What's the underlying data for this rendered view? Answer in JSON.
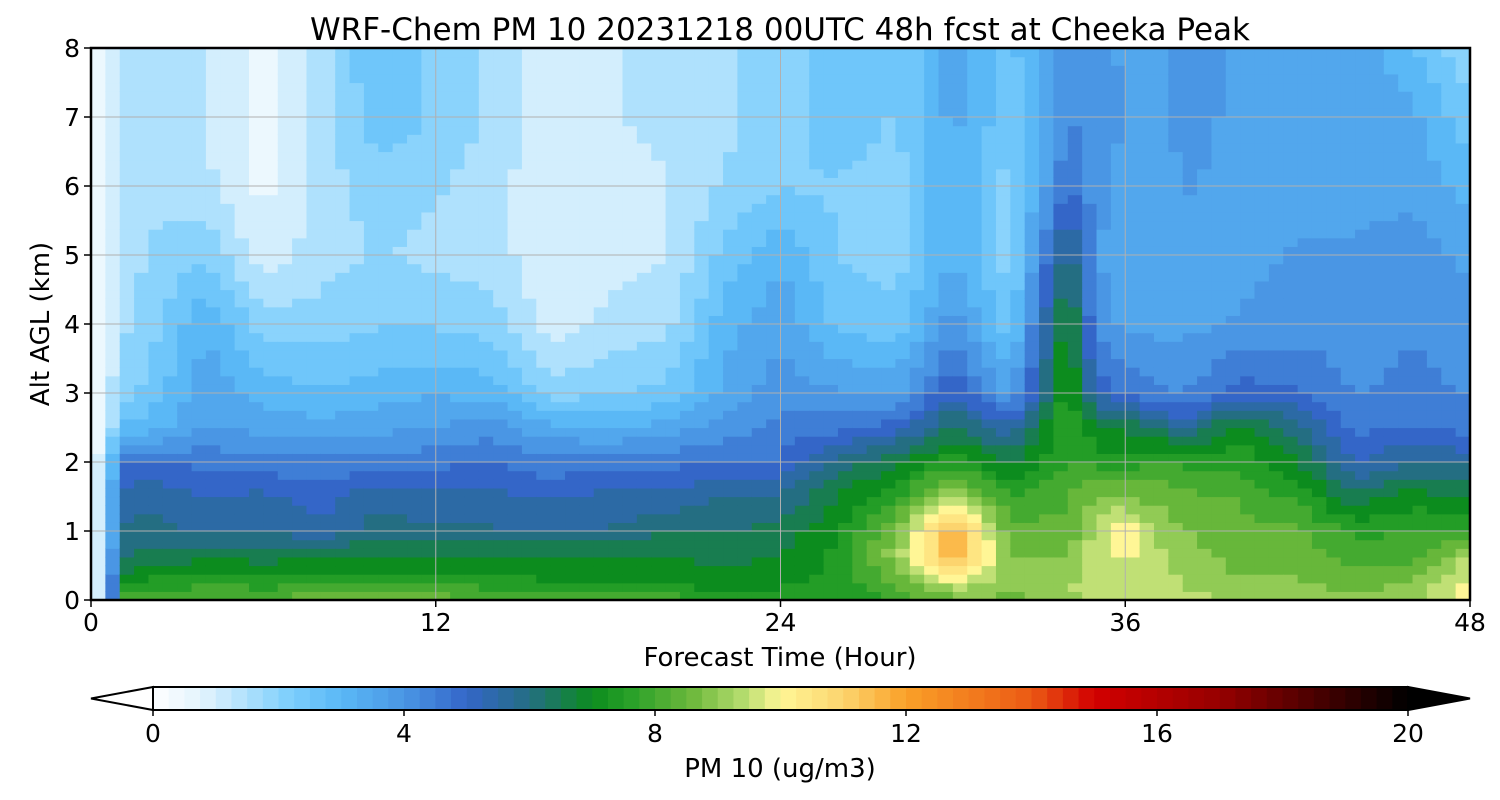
{
  "chart_data": {
    "type": "heatmap",
    "title": "WRF-Chem PM 10  20231218 00UTC 48h fcst at Cheeka Peak",
    "xlabel": "Forecast Time (Hour)",
    "ylabel": "Alt AGL (km)",
    "xlim": [
      0,
      48
    ],
    "ylim": [
      0,
      8
    ],
    "x_ticks": [
      "0",
      "12",
      "24",
      "36",
      "48"
    ],
    "y_ticks": [
      "0",
      "1",
      "2",
      "3",
      "4",
      "5",
      "6",
      "7",
      "8"
    ],
    "grid": true,
    "colorbar": {
      "label": "PM 10  (ug/m3)",
      "range": [
        0,
        20
      ],
      "ticks": [
        "0",
        "4",
        "8",
        "12",
        "16",
        "20"
      ],
      "extend": "both",
      "orientation": "horizontal"
    },
    "x_hours": [
      0,
      0.5,
      1,
      2,
      4,
      6,
      8,
      10,
      12,
      14,
      16,
      18,
      20,
      22,
      24,
      26,
      28,
      30,
      32,
      34,
      35,
      36,
      37,
      38,
      40,
      42,
      44,
      46,
      48
    ],
    "y_km": [
      0,
      0.25,
      0.6,
      1.0,
      1.5,
      2.0,
      2.5,
      3.0,
      4.0,
      5.0,
      6.0,
      7.0,
      8.0
    ],
    "pm10_profiles": [
      [
        0.5,
        0.5,
        0.4,
        0.4,
        0.4,
        0.4,
        0.3,
        0.3,
        0.3,
        0.3,
        0.3,
        0.3,
        0.3
      ],
      [
        1.0,
        1.5,
        1.5,
        1.5,
        1.4,
        1.2,
        0.8,
        0.6,
        0.5,
        0.5,
        0.5,
        0.4,
        0.4
      ],
      [
        8.0,
        7.2,
        6.2,
        5.8,
        5.4,
        4.8,
        2.8,
        2.0,
        1.6,
        1.4,
        1.4,
        1.2,
        1.2
      ],
      [
        8.2,
        7.4,
        6.4,
        6.0,
        5.6,
        4.8,
        3.0,
        2.4,
        2.0,
        1.8,
        1.6,
        1.6,
        1.6
      ],
      [
        8.4,
        7.6,
        6.8,
        5.6,
        5.2,
        4.6,
        3.8,
        3.6,
        3.2,
        2.2,
        1.4,
        1.2,
        1.2
      ],
      [
        8.4,
        7.5,
        6.6,
        5.8,
        5.4,
        4.4,
        3.6,
        3.0,
        2.0,
        0.9,
        0.6,
        0.5,
        0.5
      ],
      [
        8.6,
        7.6,
        6.8,
        5.4,
        5.0,
        4.4,
        3.4,
        2.8,
        2.0,
        1.5,
        1.5,
        1.5,
        1.5
      ],
      [
        8.6,
        7.6,
        6.8,
        6.0,
        5.6,
        4.4,
        3.6,
        3.0,
        2.2,
        1.8,
        2.0,
        2.6,
        2.8
      ],
      [
        8.5,
        7.6,
        6.8,
        5.8,
        5.4,
        4.6,
        3.8,
        3.2,
        2.2,
        1.6,
        1.8,
        2.2,
        2.0
      ],
      [
        8.4,
        7.5,
        6.8,
        5.8,
        5.4,
        4.8,
        4.0,
        3.0,
        2.0,
        1.5,
        1.5,
        1.6,
        1.6
      ],
      [
        8.2,
        7.3,
        6.8,
        5.8,
        5.2,
        4.4,
        3.4,
        2.0,
        1.0,
        0.8,
        0.8,
        0.8,
        0.8
      ],
      [
        8.2,
        7.3,
        6.8,
        5.8,
        5.4,
        4.6,
        3.2,
        2.2,
        1.4,
        1.0,
        1.0,
        1.2,
        1.2
      ],
      [
        8.0,
        7.2,
        6.8,
        6.2,
        5.4,
        4.6,
        3.4,
        2.4,
        1.6,
        1.2,
        1.2,
        1.4,
        1.4
      ],
      [
        7.6,
        7.0,
        6.6,
        6.2,
        5.8,
        4.8,
        4.0,
        3.4,
        3.0,
        2.4,
        1.8,
        1.6,
        1.6
      ],
      [
        7.4,
        7.2,
        6.8,
        6.4,
        5.8,
        4.8,
        4.4,
        4.0,
        3.6,
        3.2,
        2.2,
        2.0,
        2.0
      ],
      [
        7.2,
        7.4,
        7.4,
        7.2,
        6.8,
        6.0,
        4.6,
        3.8,
        2.6,
        2.2,
        2.2,
        2.6,
        2.6
      ],
      [
        7.8,
        8.4,
        9.0,
        8.8,
        7.6,
        6.6,
        5.0,
        3.6,
        2.4,
        2.0,
        2.0,
        2.2,
        2.2
      ],
      [
        8.6,
        9.6,
        11.6,
        11.8,
        9.4,
        7.6,
        6.4,
        5.2,
        4.0,
        3.2,
        3.2,
        3.4,
        3.4
      ],
      [
        8.6,
        9.0,
        8.8,
        8.4,
        7.8,
        6.6,
        5.4,
        3.6,
        2.4,
        2.0,
        2.0,
        2.4,
        2.6
      ],
      [
        9.0,
        9.2,
        8.8,
        8.4,
        8.2,
        7.8,
        7.8,
        7.6,
        7.2,
        6.2,
        4.8,
        4.2,
        4.0
      ],
      [
        9.4,
        9.6,
        9.6,
        9.4,
        8.8,
        7.6,
        6.8,
        5.2,
        4.0,
        3.8,
        4.0,
        4.2,
        4.0
      ],
      [
        9.6,
        9.6,
        9.8,
        10.2,
        8.8,
        7.4,
        6.6,
        4.6,
        3.6,
        3.4,
        3.4,
        3.8,
        3.6
      ],
      [
        9.8,
        9.6,
        9.4,
        9.2,
        8.6,
        7.8,
        6.4,
        4.4,
        3.6,
        3.4,
        3.2,
        3.4,
        3.4
      ],
      [
        9.4,
        9.2,
        9.0,
        8.8,
        8.4,
        7.6,
        5.6,
        4.2,
        3.6,
        3.6,
        3.8,
        4.0,
        4.0
      ],
      [
        9.2,
        8.8,
        8.6,
        8.4,
        8.2,
        7.6,
        7.0,
        5.0,
        3.8,
        3.6,
        3.6,
        3.6,
        3.6
      ],
      [
        9.0,
        8.8,
        8.6,
        8.4,
        7.6,
        6.8,
        6.0,
        4.8,
        4.0,
        3.8,
        3.6,
        3.6,
        3.6
      ],
      [
        8.8,
        8.6,
        8.0,
        7.6,
        6.4,
        5.2,
        4.6,
        4.2,
        4.0,
        3.8,
        3.6,
        3.6,
        3.6
      ],
      [
        9.0,
        8.8,
        8.2,
        7.8,
        7.0,
        5.8,
        4.8,
        4.4,
        4.2,
        4.0,
        3.6,
        3.4,
        2.8
      ],
      [
        10.2,
        10.0,
        9.4,
        7.6,
        6.6,
        5.6,
        4.6,
        4.2,
        4.0,
        3.6,
        3.0,
        2.4,
        1.8
      ]
    ]
  }
}
